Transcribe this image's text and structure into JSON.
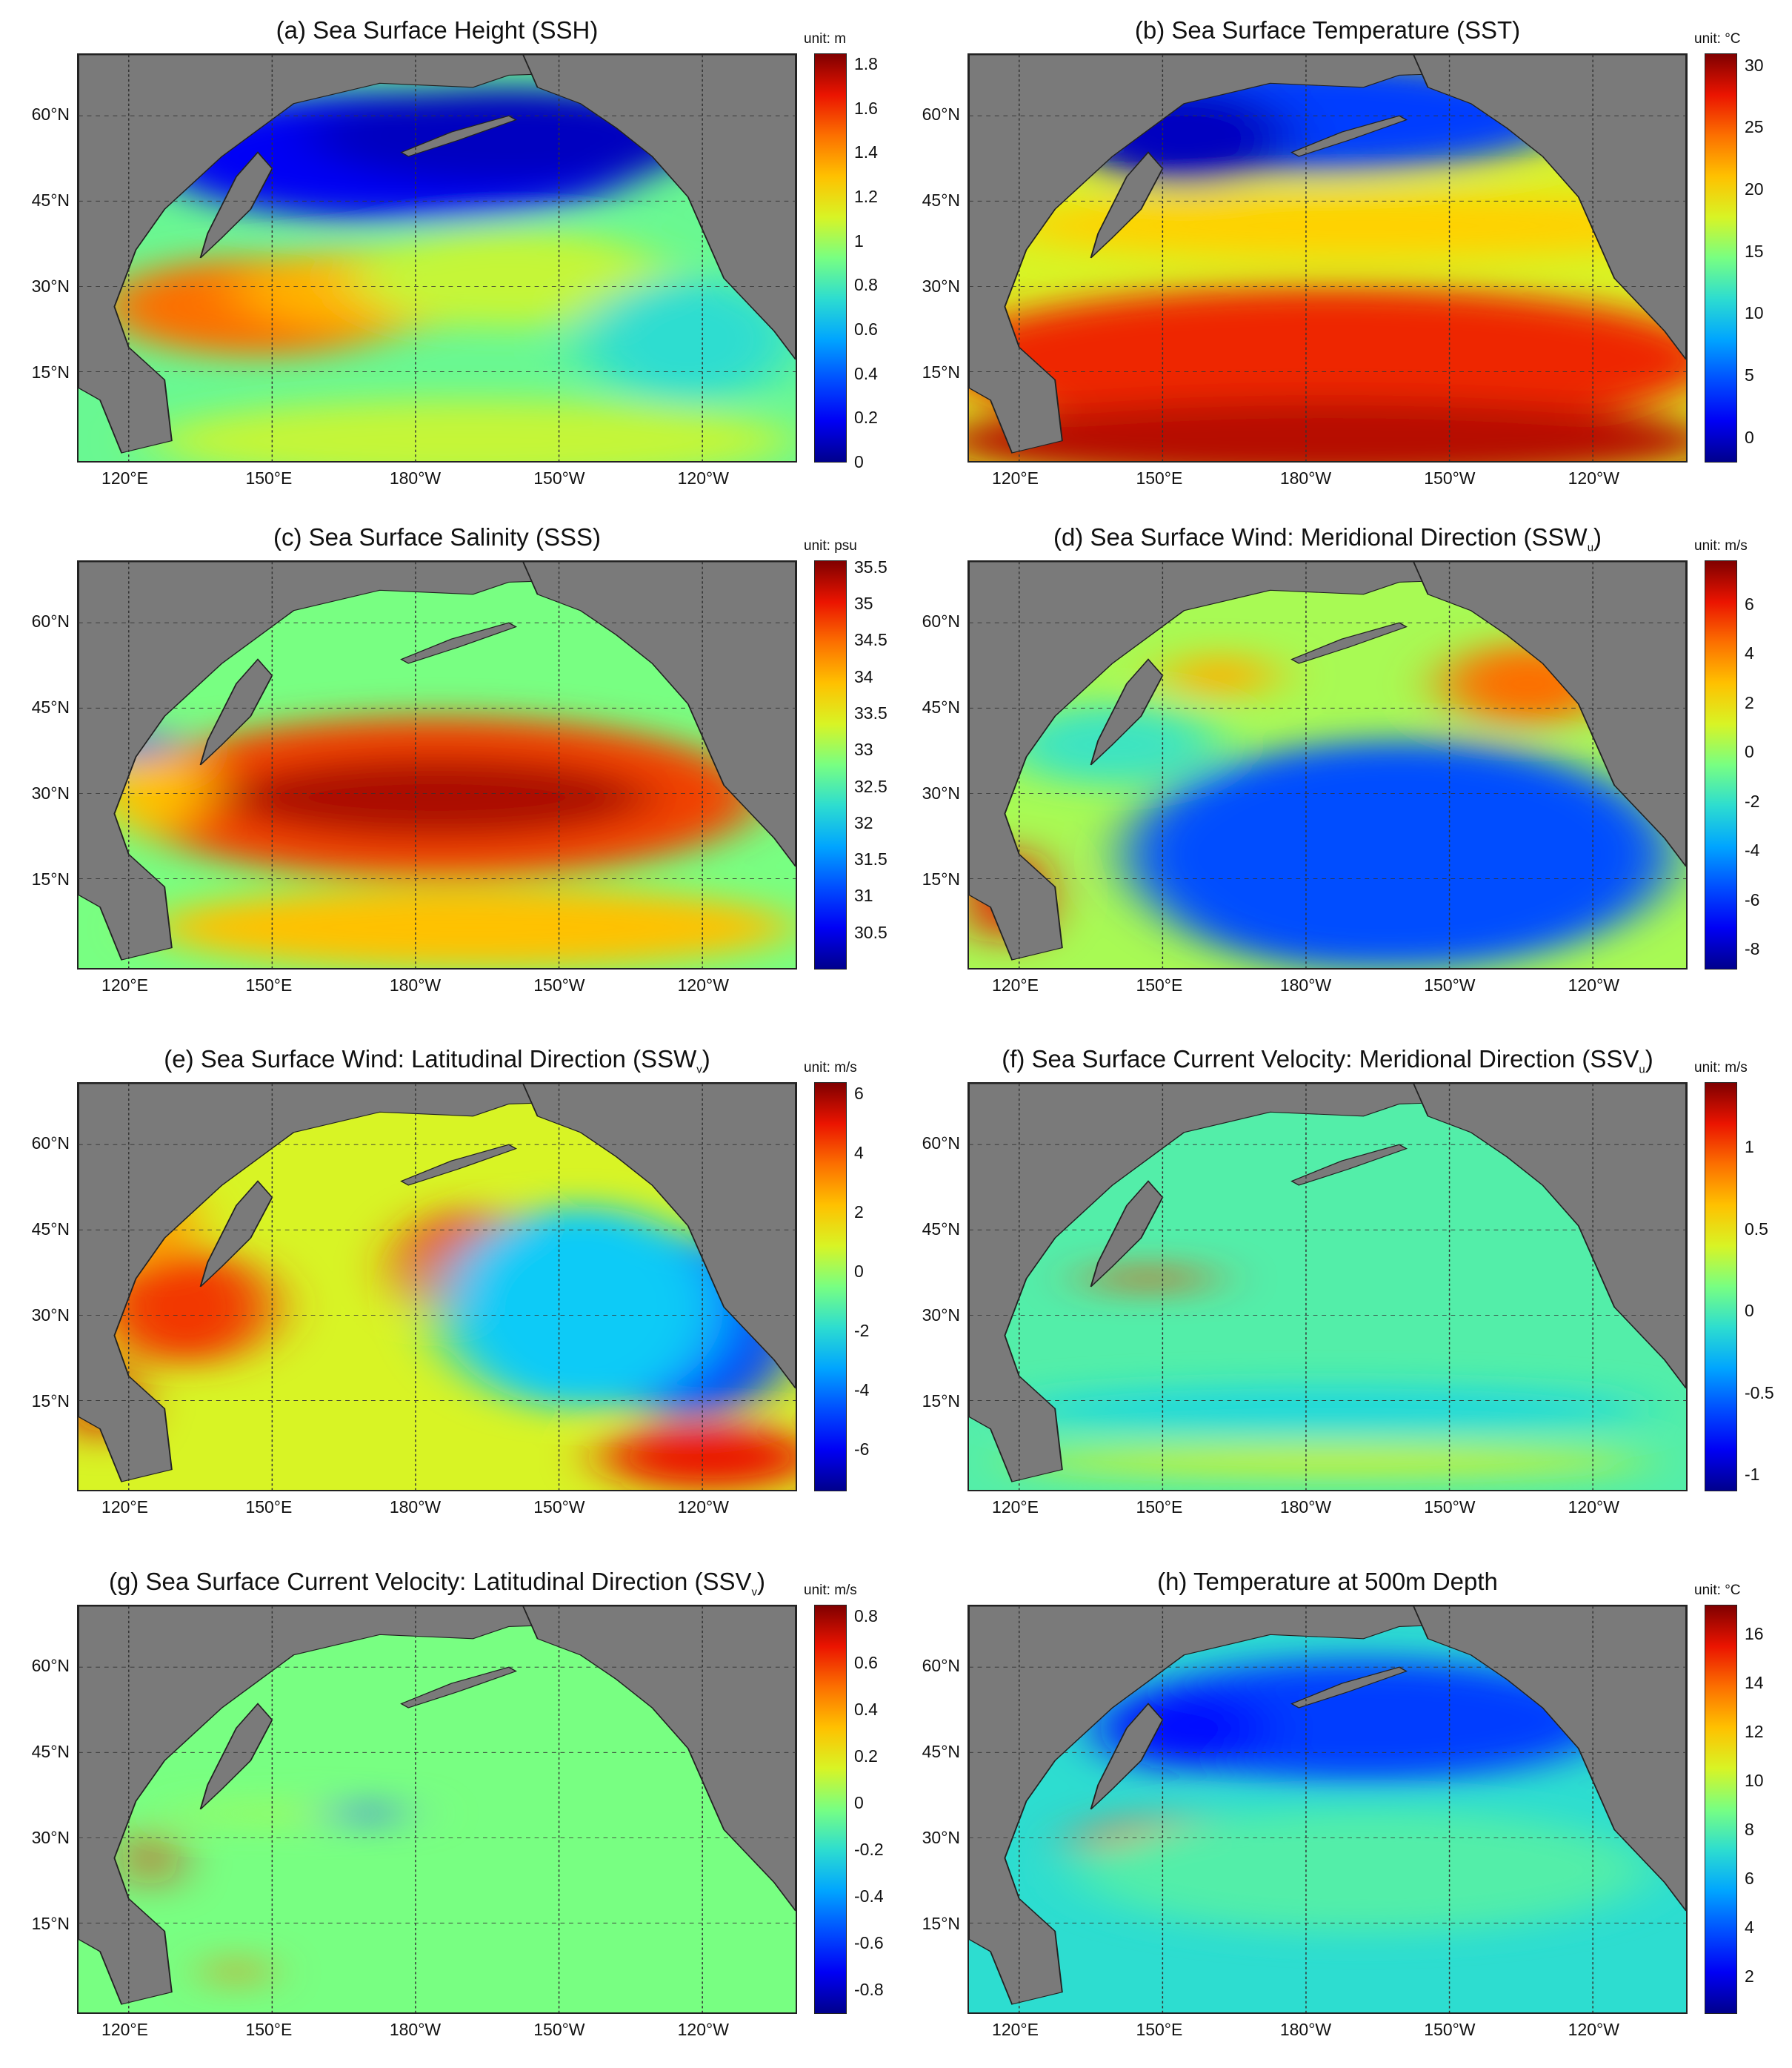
{
  "figure": {
    "lat_labels": [
      "60°N",
      "45°N",
      "30°N",
      "15°N"
    ],
    "lon_labels": [
      "120°E",
      "150°E",
      "180°W",
      "150°W",
      "120°W"
    ],
    "land_color": "#7a7a7a",
    "nodata_color": "#ffffff",
    "colormap": "jet"
  },
  "panels": [
    {
      "id": "a",
      "title": "(a) Sea Surface Height (SSH)",
      "unit": "unit: m",
      "colorbar_ticks": [
        "1.8",
        "1.6",
        "1.4",
        "1.2",
        "1",
        "0.8",
        "0.6",
        "0.4",
        "0.2",
        "0"
      ],
      "colorbar_range": [
        0,
        1.85
      ]
    },
    {
      "id": "b",
      "title": "(b) Sea Surface Temperature (SST)",
      "unit": "unit: °C",
      "colorbar_ticks": [
        "30",
        "25",
        "20",
        "15",
        "10",
        "5",
        "0"
      ],
      "colorbar_range": [
        -2,
        31
      ]
    },
    {
      "id": "c",
      "title": "(c) Sea Surface Salinity (SSS)",
      "unit": "unit: psu",
      "colorbar_ticks": [
        "35.5",
        "35",
        "34.5",
        "34",
        "33.5",
        "33",
        "32.5",
        "32",
        "31.5",
        "31",
        "30.5"
      ],
      "colorbar_range": [
        30,
        35.6
      ]
    },
    {
      "id": "d",
      "title_main": "(d) Sea Surface Wind: Meridional Direction (SSW",
      "title_sub": "u",
      "title_end": ")",
      "unit": "unit: m/s",
      "colorbar_ticks": [
        "6",
        "4",
        "2",
        "0",
        "-2",
        "-4",
        "-6",
        "-8"
      ],
      "colorbar_range": [
        -8.8,
        7.8
      ]
    },
    {
      "id": "e",
      "title_main": "(e) Sea Surface Wind: Latitudinal Direction (SSW",
      "title_sub": "v",
      "title_end": ")",
      "unit": "unit: m/s",
      "colorbar_ticks": [
        "6",
        "4",
        "2",
        "0",
        "-2",
        "-4",
        "-6"
      ],
      "colorbar_range": [
        -7.4,
        6.4
      ]
    },
    {
      "id": "f",
      "title_main": "(f) Sea Surface Current Velocity: Meridional Direction (SSV",
      "title_sub": "u",
      "title_end": ")",
      "unit": "unit: m/s",
      "colorbar_ticks": [
        "1",
        "0.5",
        "0",
        "-0.5",
        "-1"
      ],
      "colorbar_range": [
        -1.1,
        1.4
      ]
    },
    {
      "id": "g",
      "title_main": "(g) Sea Surface Current Velocity: Latitudinal Direction (SSV",
      "title_sub": "v",
      "title_end": ")",
      "unit": "unit: m/s",
      "colorbar_ticks": [
        "0.8",
        "0.6",
        "0.4",
        "0.2",
        "0",
        "-0.2",
        "-0.4",
        "-0.6",
        "-0.8"
      ],
      "colorbar_range": [
        -0.9,
        0.85
      ]
    },
    {
      "id": "h",
      "title": "(h) Temperature at 500m Depth",
      "unit": "unit: °C",
      "colorbar_ticks": [
        "16",
        "14",
        "12",
        "10",
        "8",
        "6",
        "4",
        "2"
      ],
      "colorbar_range": [
        0.5,
        17.2
      ]
    }
  ]
}
